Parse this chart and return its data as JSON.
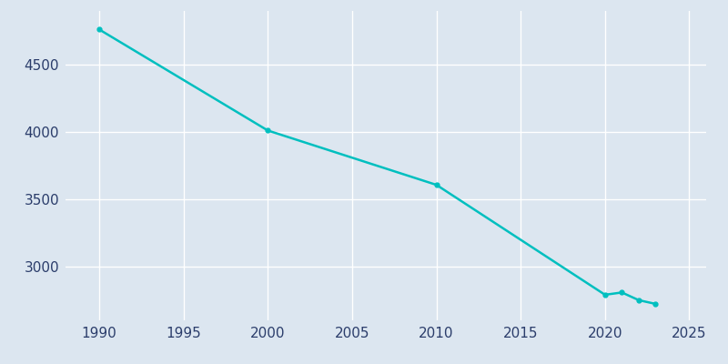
{
  "years": [
    1990,
    2000,
    2010,
    2020,
    2021,
    2022,
    2023
  ],
  "population": [
    4762,
    4011,
    3607,
    2790,
    2807,
    2750,
    2722
  ],
  "line_color": "#00BFBF",
  "marker": "o",
  "marker_size": 3.5,
  "line_width": 1.8,
  "background_color": "#dce6f0",
  "plot_bg_color": "#dce6f0",
  "grid_color": "#ffffff",
  "xlim": [
    1988,
    2026
  ],
  "ylim": [
    2600,
    4900
  ],
  "xticks": [
    1990,
    1995,
    2000,
    2005,
    2010,
    2015,
    2020,
    2025
  ],
  "yticks": [
    3000,
    3500,
    4000,
    4500
  ],
  "tick_label_color": "#2b3d6b",
  "tick_fontsize": 11,
  "fig_width": 8.0,
  "fig_height": 4.0,
  "fig_dpi": 100
}
